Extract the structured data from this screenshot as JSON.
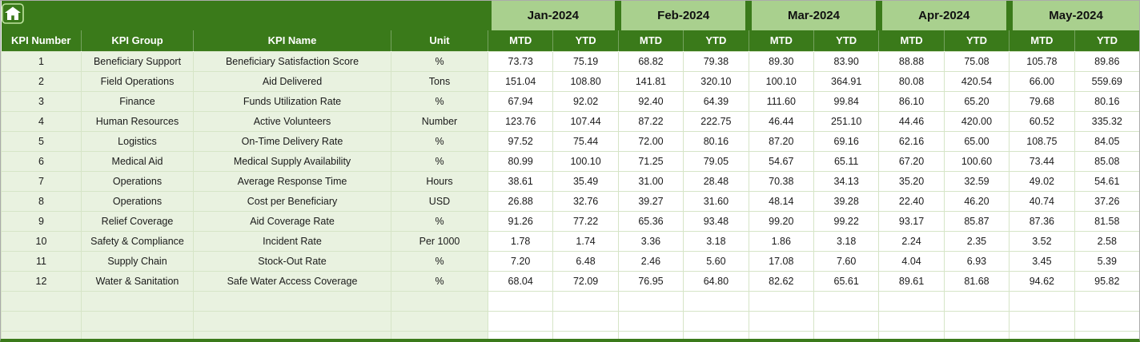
{
  "colors": {
    "dark_green": "#3A7A1A",
    "light_green": "#A9D08E",
    "pale_green": "#E9F2E0",
    "grid_line": "#D6E5C7"
  },
  "icons": {
    "home": "home-icon"
  },
  "header": {
    "months": [
      "Jan-2024",
      "Feb-2024",
      "Mar-2024",
      "Apr-2024",
      "May-2024"
    ],
    "period_labels": [
      "MTD",
      "YTD"
    ],
    "columns": [
      "KPI Number",
      "KPI Group",
      "KPI Name",
      "Unit"
    ]
  },
  "table": {
    "empty_row_count": 3,
    "rows": [
      {
        "number": "1",
        "group": "Beneficiary Support",
        "name": "Beneficiary Satisfaction Score",
        "unit": "%",
        "values": [
          "73.73",
          "75.19",
          "68.82",
          "79.38",
          "89.30",
          "83.90",
          "88.88",
          "75.08",
          "105.78",
          "89.86"
        ]
      },
      {
        "number": "2",
        "group": "Field Operations",
        "name": "Aid Delivered",
        "unit": "Tons",
        "values": [
          "151.04",
          "108.80",
          "141.81",
          "320.10",
          "100.10",
          "364.91",
          "80.08",
          "420.54",
          "66.00",
          "559.69"
        ]
      },
      {
        "number": "3",
        "group": "Finance",
        "name": "Funds Utilization Rate",
        "unit": "%",
        "values": [
          "67.94",
          "92.02",
          "92.40",
          "64.39",
          "111.60",
          "99.84",
          "86.10",
          "65.20",
          "79.68",
          "80.16"
        ]
      },
      {
        "number": "4",
        "group": "Human Resources",
        "name": "Active Volunteers",
        "unit": "Number",
        "values": [
          "123.76",
          "107.44",
          "87.22",
          "222.75",
          "46.44",
          "251.10",
          "44.46",
          "420.00",
          "60.52",
          "335.32"
        ]
      },
      {
        "number": "5",
        "group": "Logistics",
        "name": "On-Time Delivery Rate",
        "unit": "%",
        "values": [
          "97.52",
          "75.44",
          "72.00",
          "80.16",
          "87.20",
          "69.16",
          "62.16",
          "65.00",
          "108.75",
          "84.05"
        ]
      },
      {
        "number": "6",
        "group": "Medical Aid",
        "name": "Medical Supply Availability",
        "unit": "%",
        "values": [
          "80.99",
          "100.10",
          "71.25",
          "79.05",
          "54.67",
          "65.11",
          "67.20",
          "100.60",
          "73.44",
          "85.08"
        ]
      },
      {
        "number": "7",
        "group": "Operations",
        "name": "Average Response Time",
        "unit": "Hours",
        "values": [
          "38.61",
          "35.49",
          "31.00",
          "28.48",
          "70.38",
          "34.13",
          "35.20",
          "32.59",
          "49.02",
          "54.61"
        ]
      },
      {
        "number": "8",
        "group": "Operations",
        "name": "Cost per Beneficiary",
        "unit": "USD",
        "values": [
          "26.88",
          "32.76",
          "39.27",
          "31.60",
          "48.14",
          "39.28",
          "22.40",
          "46.20",
          "40.74",
          "37.26"
        ]
      },
      {
        "number": "9",
        "group": "Relief Coverage",
        "name": "Aid Coverage Rate",
        "unit": "%",
        "values": [
          "91.26",
          "77.22",
          "65.36",
          "93.48",
          "99.20",
          "99.22",
          "93.17",
          "85.87",
          "87.36",
          "81.58"
        ]
      },
      {
        "number": "10",
        "group": "Safety & Compliance",
        "name": "Incident Rate",
        "unit": "Per 1000",
        "values": [
          "1.78",
          "1.74",
          "3.36",
          "3.18",
          "1.86",
          "3.18",
          "2.24",
          "2.35",
          "3.52",
          "2.58"
        ]
      },
      {
        "number": "11",
        "group": "Supply Chain",
        "name": "Stock-Out Rate",
        "unit": "%",
        "values": [
          "7.20",
          "6.48",
          "2.46",
          "5.60",
          "17.08",
          "7.60",
          "4.04",
          "6.93",
          "3.45",
          "5.39"
        ]
      },
      {
        "number": "12",
        "group": "Water & Sanitation",
        "name": "Safe Water Access Coverage",
        "unit": "%",
        "values": [
          "68.04",
          "72.09",
          "76.95",
          "64.80",
          "82.62",
          "65.61",
          "89.61",
          "81.68",
          "94.62",
          "95.82"
        ]
      }
    ]
  }
}
